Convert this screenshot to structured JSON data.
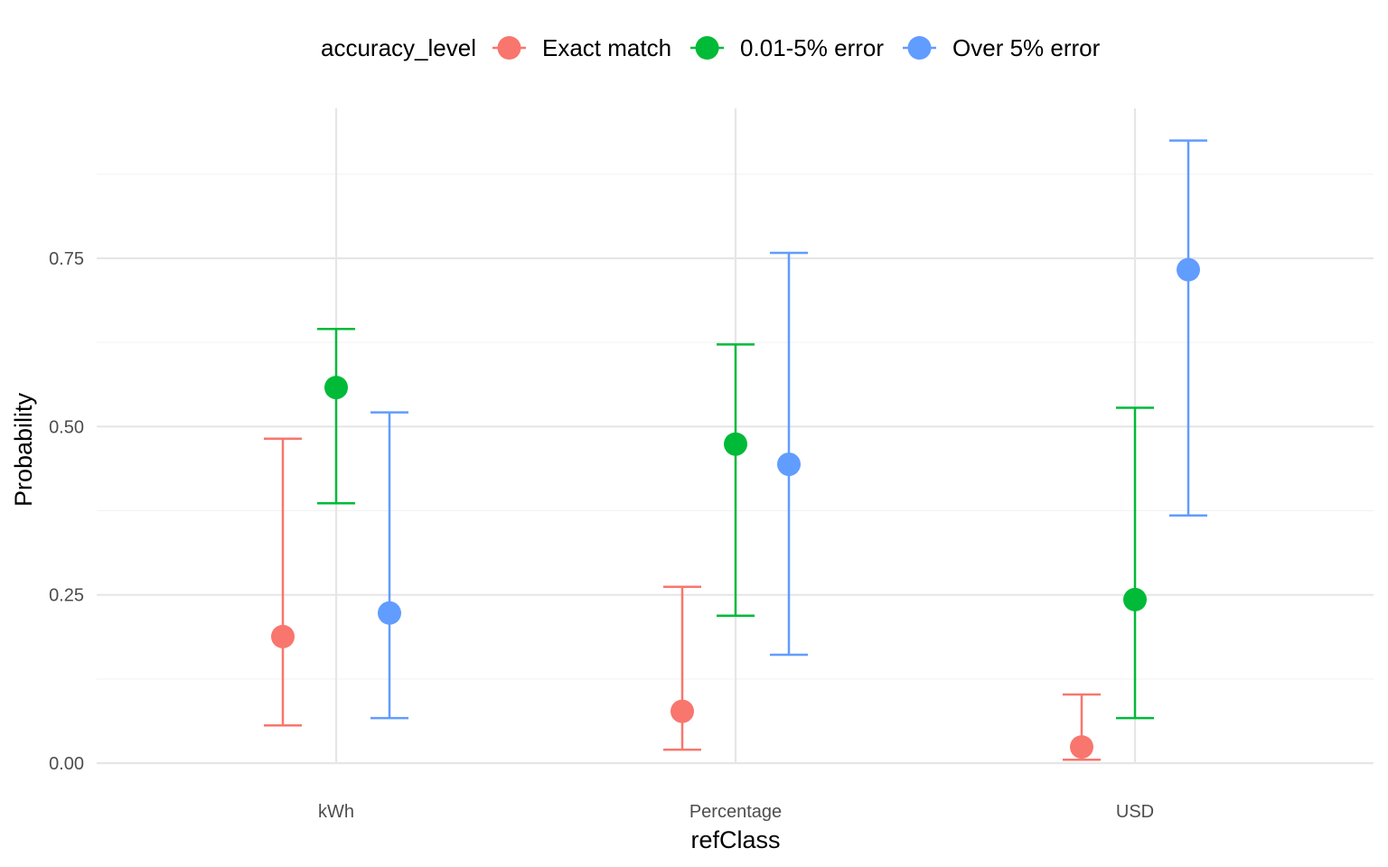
{
  "chart_data": {
    "type": "scatter",
    "subtype": "pointrange",
    "xlabel": "refClass",
    "ylabel": "Probability",
    "categories": [
      "kWh",
      "Percentage",
      "USD"
    ],
    "ylim": [
      0,
      0.94
    ],
    "yticks": [
      "0.00",
      "0.25",
      "0.50",
      "0.75"
    ],
    "ytick_values": [
      0,
      0.25,
      0.5,
      0.75
    ],
    "grid": true,
    "legend": {
      "title": "accuracy_level",
      "position": "top"
    },
    "series": [
      {
        "name": "Exact match",
        "color": "#F8766D",
        "values": [
          0.188,
          0.077,
          0.024
        ],
        "lower": [
          0.056,
          0.02,
          0.005
        ],
        "upper": [
          0.482,
          0.262,
          0.102
        ]
      },
      {
        "name": "0.01-5% error",
        "color": "#00BA38",
        "values": [
          0.558,
          0.474,
          0.243
        ],
        "lower": [
          0.386,
          0.219,
          0.067
        ],
        "upper": [
          0.645,
          0.622,
          0.528
        ]
      },
      {
        "name": "Over 5% error",
        "color": "#619CFF",
        "values": [
          0.223,
          0.444,
          0.733
        ],
        "lower": [
          0.067,
          0.161,
          0.368
        ],
        "upper": [
          0.521,
          0.758,
          0.925
        ]
      }
    ]
  }
}
